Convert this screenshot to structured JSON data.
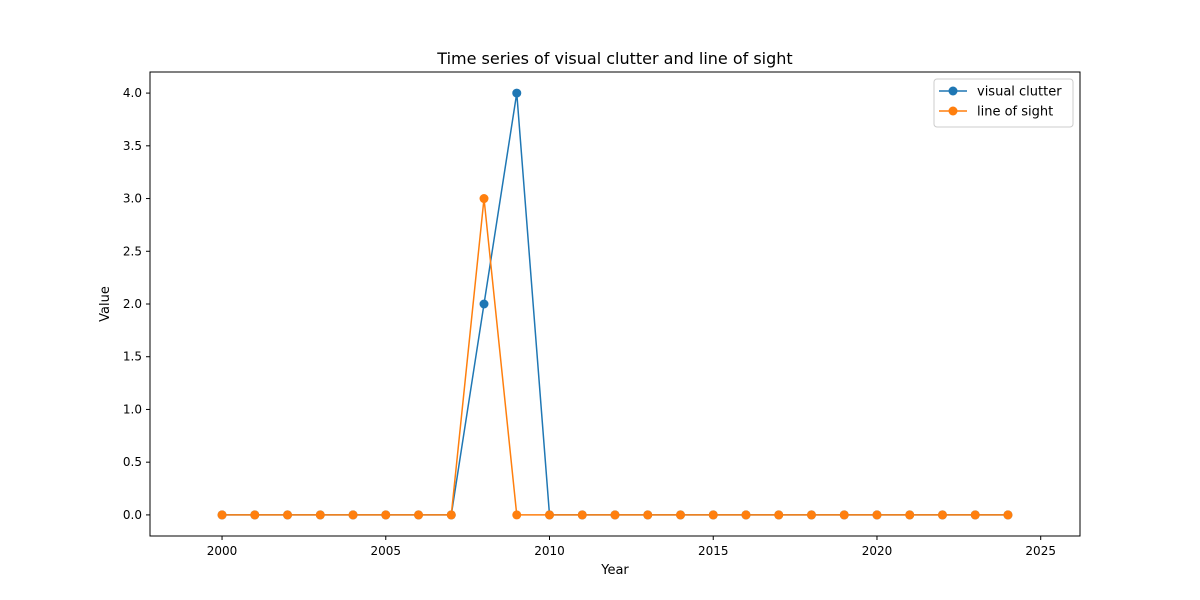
{
  "chart_data": {
    "type": "line",
    "title": "Time series of visual clutter and line of sight",
    "xlabel": "Year",
    "ylabel": "Value",
    "xlim": [
      1997.8,
      2026.2
    ],
    "ylim": [
      -0.2,
      4.2
    ],
    "x_ticks": [
      2000,
      2005,
      2010,
      2015,
      2020,
      2025
    ],
    "y_ticks": [
      0.0,
      0.5,
      1.0,
      1.5,
      2.0,
      2.5,
      3.0,
      3.5,
      4.0
    ],
    "x_tick_labels": [
      "2000",
      "2005",
      "2010",
      "2015",
      "2020",
      "2025"
    ],
    "y_tick_labels": [
      "0.0",
      "0.5",
      "1.0",
      "1.5",
      "2.0",
      "2.5",
      "3.0",
      "3.5",
      "4.0"
    ],
    "grid": false,
    "legend_position": "top-right",
    "x": [
      2000,
      2001,
      2002,
      2003,
      2004,
      2005,
      2006,
      2007,
      2008,
      2009,
      2010,
      2011,
      2012,
      2013,
      2014,
      2015,
      2016,
      2017,
      2018,
      2019,
      2020,
      2021,
      2022,
      2023,
      2024
    ],
    "series": [
      {
        "name": "visual clutter",
        "color": "#1f77b4",
        "values": [
          0,
          0,
          0,
          0,
          0,
          0,
          0,
          0,
          2,
          4,
          0,
          0,
          0,
          0,
          0,
          0,
          0,
          0,
          0,
          0,
          0,
          0,
          0,
          0,
          0
        ]
      },
      {
        "name": "line of sight",
        "color": "#ff7f0e",
        "values": [
          0,
          0,
          0,
          0,
          0,
          0,
          0,
          0,
          3,
          0,
          0,
          0,
          0,
          0,
          0,
          0,
          0,
          0,
          0,
          0,
          0,
          0,
          0,
          0,
          0
        ]
      }
    ]
  }
}
